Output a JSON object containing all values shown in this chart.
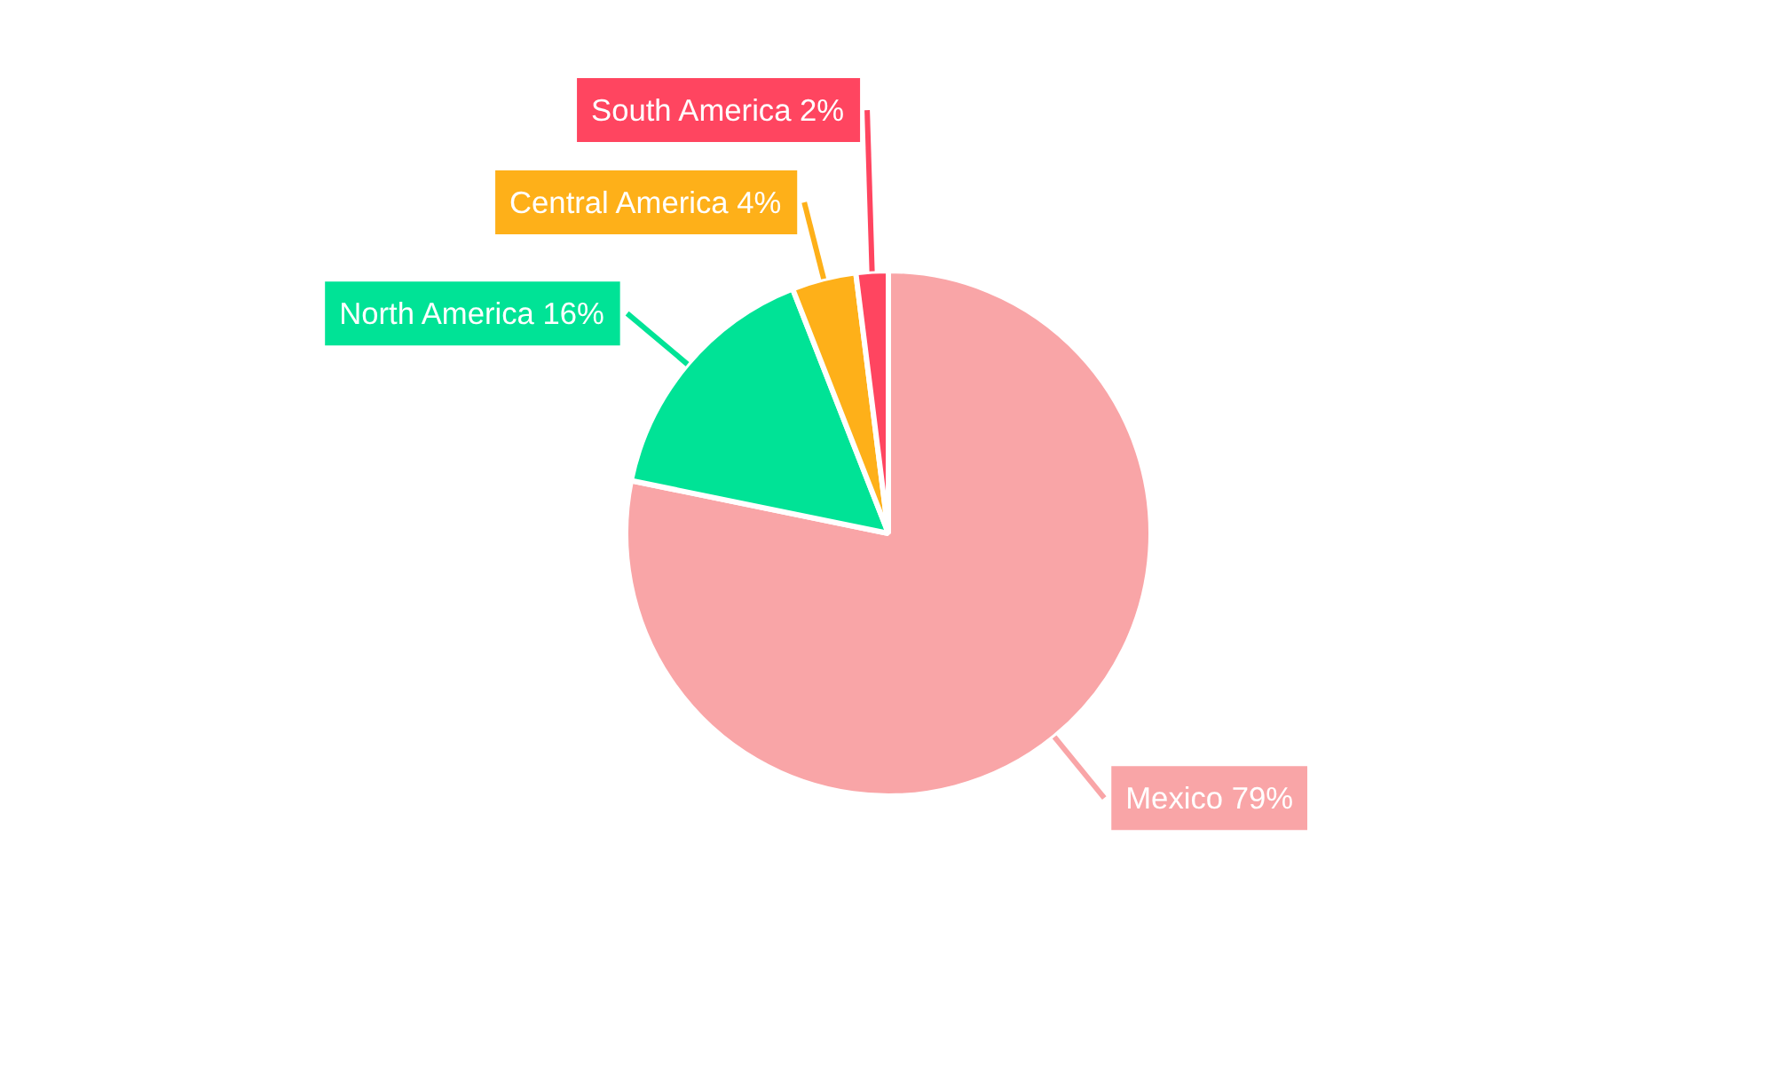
{
  "chart_data": {
    "type": "pie",
    "categories": [
      "Mexico",
      "North America",
      "Central America",
      "South America"
    ],
    "values": [
      79,
      16,
      4,
      2
    ],
    "value_labels": [
      "79%",
      "16%",
      "4%",
      "2%"
    ],
    "colors": [
      "#f9a5a7",
      "#00e396",
      "#feb019",
      "#ff4560"
    ],
    "data_labels": true
  }
}
